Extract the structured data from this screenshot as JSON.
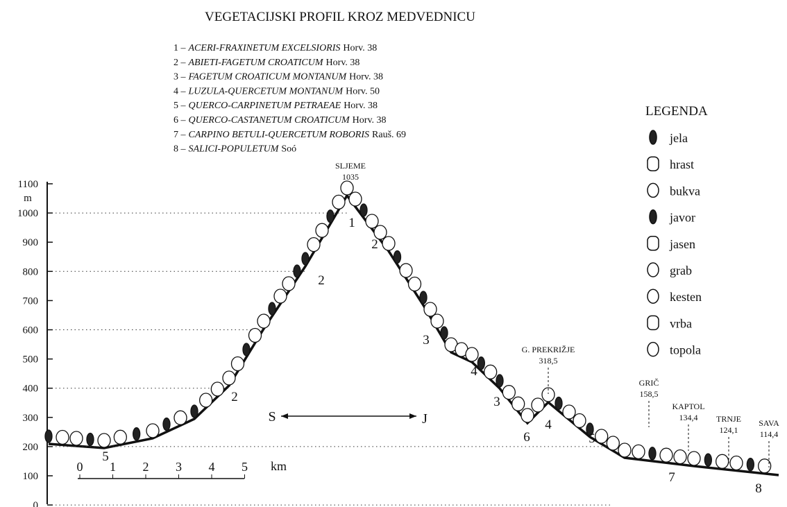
{
  "title": "VEGETACIJSKI PROFIL KROZ MEDVEDNICU",
  "associations": [
    {
      "number": "1 –",
      "name": "ACERI-FRAXINETUM EXCELSIORIS",
      "author": "Horv. 38"
    },
    {
      "number": "2 –",
      "name": "ABIETI-FAGETUM CROATICUM",
      "author": "Horv. 38"
    },
    {
      "number": "3 –",
      "name": "FAGETUM CROATICUM MONTANUM",
      "author": "Horv. 38"
    },
    {
      "number": "4 –",
      "name": "LUZULA-QUERCETUM MONTANUM",
      "author": "Horv. 50"
    },
    {
      "number": "5 –",
      "name": "QUERCO-CARPINETUM PETRAEAE",
      "author": "Horv. 38"
    },
    {
      "number": "6 –",
      "name": "QUERCO-CASTANETUM CROATICUM",
      "author": "Horv. 38"
    },
    {
      "number": "7 –",
      "name": "CARPINO BETULI-QUERCETUM ROBORIS",
      "author": "Rauš. 69"
    },
    {
      "number": "8 –",
      "name": "SALICI-POPULETUM",
      "author": "Soó"
    }
  ],
  "legend": {
    "title": "LEGENDA",
    "items": [
      "jela",
      "hrast",
      "bukva",
      "javor",
      "jasen",
      "grab",
      "kesten",
      "vrba",
      "topola"
    ]
  },
  "axis": {
    "unit": "m",
    "ticks": [
      "1100",
      "1000",
      "900",
      "800",
      "700",
      "600",
      "500",
      "400",
      "300",
      "200",
      "100",
      "0"
    ]
  },
  "places": [
    {
      "name": "SLJEME",
      "height": "1035"
    },
    {
      "name": "G. PREKRIŽJE",
      "height": "318,5"
    },
    {
      "name": "GRIČ",
      "height": "158,5"
    },
    {
      "name": "KAPTOL",
      "height": "134,4"
    },
    {
      "name": "TRNJE",
      "height": "124,1"
    },
    {
      "name": "SAVA",
      "height": "114,4"
    }
  ],
  "zone_labels": [
    "1",
    "2",
    "2",
    "3",
    "4",
    "3",
    "6",
    "4",
    "5",
    "2",
    "5",
    "7",
    "8"
  ],
  "direction": {
    "left": "S",
    "right": "J"
  },
  "scale": {
    "ticks": [
      "0",
      "1",
      "2",
      "3",
      "4",
      "5"
    ],
    "unit": "km"
  }
}
